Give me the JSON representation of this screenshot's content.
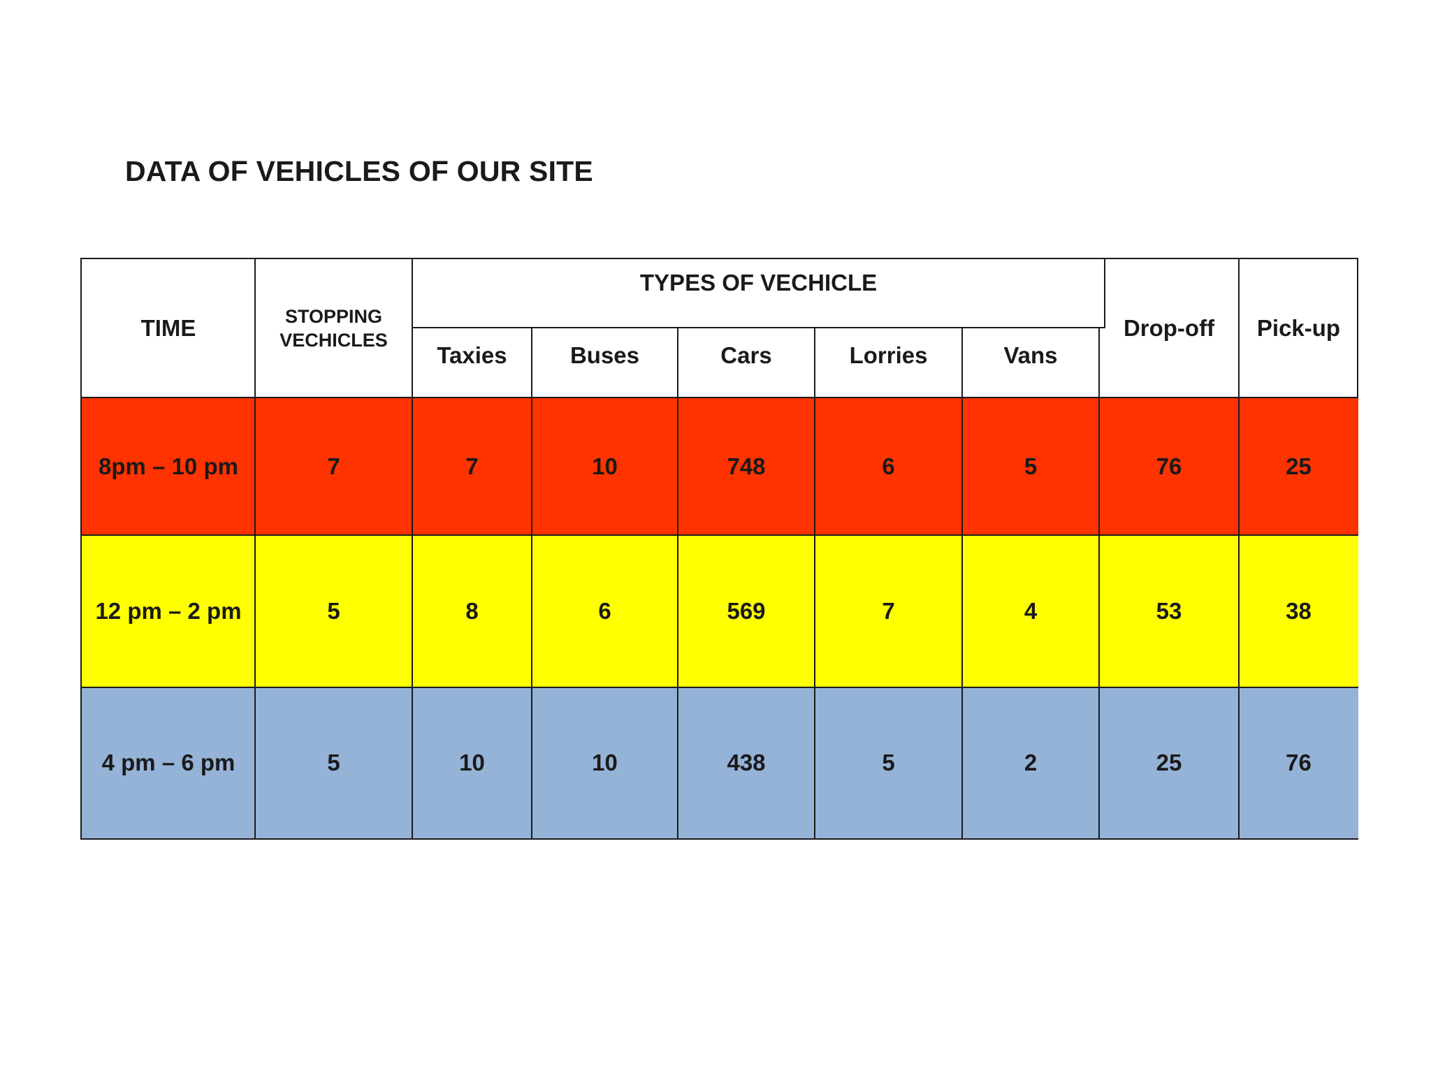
{
  "title": "DATA OF VEHICLES OF OUR SITE",
  "table": {
    "headers": {
      "time": "TIME",
      "stopping_line1": "STOPPING",
      "stopping_line2": "VECHICLES",
      "types_group": "TYPES OF VECHICLE",
      "taxies": "Taxies",
      "buses": "Buses",
      "cars": "Cars",
      "lorries": "Lorries",
      "vans": "Vans",
      "dropoff": "Drop-off",
      "pickup": "Pick-up"
    },
    "rows": [
      {
        "time": "8pm – 10 pm",
        "stopping": "7",
        "taxies": "7",
        "buses": "10",
        "cars": "748",
        "lorries": "6",
        "vans": "5",
        "dropoff": "76",
        "pickup": "25",
        "color": "#ff3300"
      },
      {
        "time": "12 pm – 2 pm",
        "stopping": "5",
        "taxies": "8",
        "buses": "6",
        "cars": "569",
        "lorries": "7",
        "vans": "4",
        "dropoff": "53",
        "pickup": "38",
        "color": "#ffff00"
      },
      {
        "time": "4 pm – 6 pm",
        "stopping": "5",
        "taxies": "10",
        "buses": "10",
        "cars": "438",
        "lorries": "5",
        "vans": "2",
        "dropoff": "25",
        "pickup": "76",
        "color": "#95b3d7"
      }
    ]
  }
}
